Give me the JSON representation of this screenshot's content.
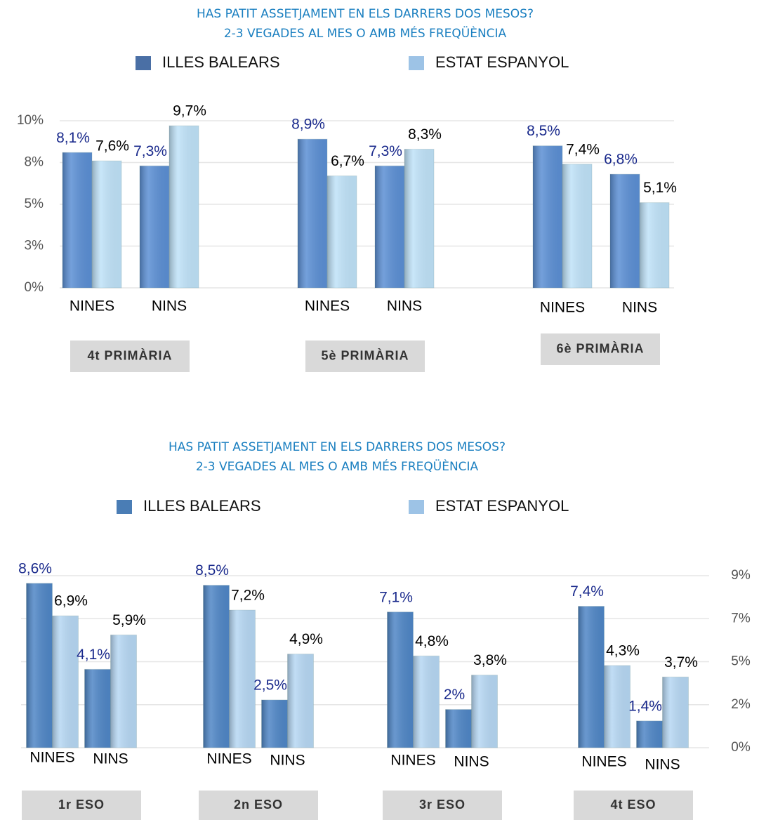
{
  "chart_data": [
    {
      "type": "bar",
      "title": [
        "HAS PATIT ASSETJAMENT EN ELS DARRERS DOS MESOS?",
        "2-3 VEGADES AL MES O AMB MÉS FREQÜÈNCIA"
      ],
      "groups": [
        "4t PRIMÀRIA",
        "5è PRIMÀRIA",
        "6è PRIMÀRIA"
      ],
      "categories": [
        "NINES",
        "NINS",
        "NINES",
        "NINS",
        "NINES",
        "NINS"
      ],
      "series": [
        {
          "name": "ILLES BALEARS",
          "color": "#5b8fd4",
          "legend_color": "#4a6fa5",
          "label_color": "#1a2a8c",
          "values": [
            8.1,
            7.3,
            8.9,
            7.3,
            8.5,
            6.8
          ],
          "value_labels": [
            "8,1%",
            "7,3%",
            "8,9%",
            "7,3%",
            "8,5%",
            "6,8%"
          ]
        },
        {
          "name": "ESTAT ESPANYOL",
          "color": "#bfe2f8",
          "legend_color": "#9dc3e6",
          "label_color": "#000000",
          "values": [
            7.6,
            9.7,
            6.7,
            8.3,
            7.4,
            5.1
          ],
          "value_labels": [
            "7,6%",
            "9,7%",
            "6,7%",
            "8,3%",
            "7,4%",
            "5,1%"
          ]
        }
      ],
      "ylim": [
        0,
        10
      ],
      "yticks": [
        {
          "value": 0,
          "label": "0%"
        },
        {
          "value": 2.5,
          "label": "3%"
        },
        {
          "value": 5,
          "label": "5%"
        },
        {
          "value": 7.5,
          "label": "8%"
        },
        {
          "value": 10,
          "label": "10%"
        }
      ],
      "yaxis_position": "left",
      "grid": true,
      "legend_position": "top"
    },
    {
      "type": "bar",
      "title": [
        "HAS PATIT ASSETJAMENT EN ELS DARRERS DOS MESOS?",
        "2-3 VEGADES AL MES O AMB MÉS FREQÜÈNCIA"
      ],
      "groups": [
        "1r ESO",
        "2n ESO",
        "3r ESO",
        "4t ESO"
      ],
      "categories": [
        "NINES",
        "NINS",
        "NINES",
        "NINS",
        "NINES",
        "NINS",
        "NINES",
        "NINS"
      ],
      "series": [
        {
          "name": "ILLES BALEARS",
          "color": "#4f86c6",
          "legend_color": "#4a7db5",
          "label_color": "#1a2a8c",
          "values": [
            8.6,
            4.1,
            8.5,
            2.5,
            7.1,
            2,
            7.4,
            1.4
          ],
          "value_labels": [
            "8,6%",
            "4,1%",
            "8,5%",
            "2,5%",
            "7,1%",
            "2%",
            "7,4%",
            "1,4%"
          ]
        },
        {
          "name": "ESTAT ESPANYOL",
          "color": "#b6d7f3",
          "legend_color": "#9dc3e6",
          "label_color": "#000000",
          "values": [
            6.9,
            5.9,
            7.2,
            4.9,
            4.8,
            3.8,
            4.3,
            3.7
          ],
          "value_labels": [
            "6,9%",
            "5,9%",
            "7,2%",
            "4,9%",
            "4,8%",
            "3,8%",
            "4,3%",
            "3,7%"
          ]
        }
      ],
      "ylim": [
        0,
        9
      ],
      "yticks": [
        {
          "value": 0,
          "label": "0%"
        },
        {
          "value": 2.25,
          "label": "2%"
        },
        {
          "value": 4.5,
          "label": "5%"
        },
        {
          "value": 6.75,
          "label": "7%"
        },
        {
          "value": 9,
          "label": "9%"
        }
      ],
      "yaxis_position": "right",
      "grid": true,
      "legend_position": "top"
    }
  ]
}
